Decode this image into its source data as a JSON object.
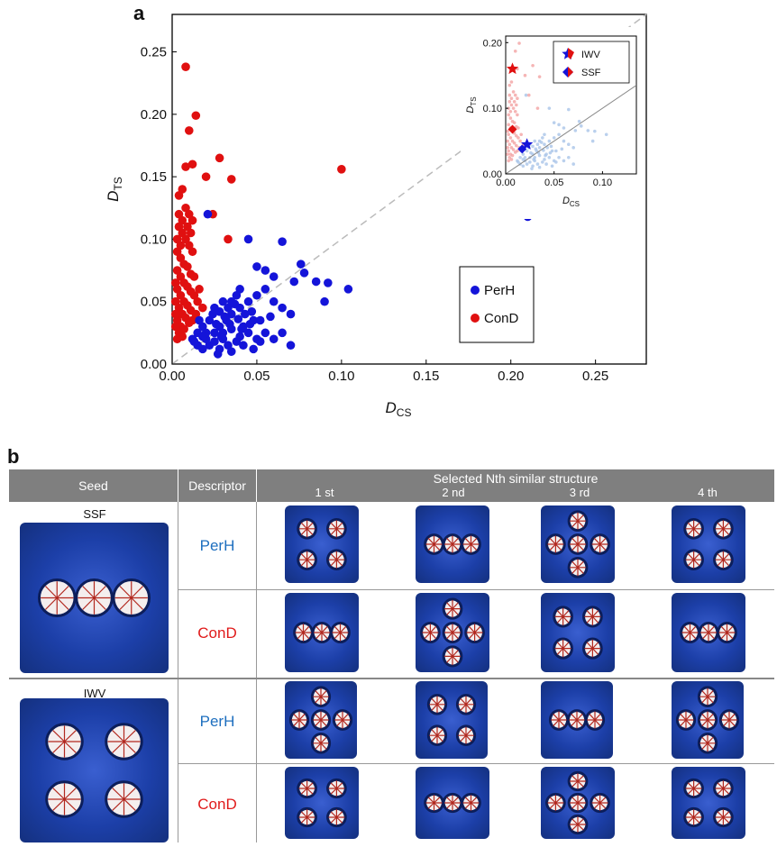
{
  "panel_a_letter": "a",
  "panel_b_letter": "b",
  "colors": {
    "perh": "#1414d9",
    "cond": "#e01010",
    "perh_label": "#1e6fbf",
    "cond_label": "#e01a1a",
    "header_bg": "#7f7f7f",
    "structure_blue": "#1c3fa8"
  },
  "chart_data": [
    {
      "type": "scatter",
      "xlabel_main": "D",
      "xlabel_sub": "CS",
      "ylabel_main": "D",
      "ylabel_sub": "TS",
      "xlim": [
        0,
        0.28
      ],
      "ylim": [
        0,
        0.28
      ],
      "xticks": [
        "0.00",
        "0.05",
        "0.10",
        "0.15",
        "0.20",
        "0.25"
      ],
      "yticks": [
        "0.00",
        "0.05",
        "0.10",
        "0.15",
        "0.20",
        "0.25"
      ],
      "diagonal": "dashed y = x",
      "legend_position": "lower-right",
      "series": [
        {
          "name": "PerH",
          "color": "#1414d9",
          "points": [
            [
              0.021,
              0.12
            ],
            [
              0.045,
              0.1
            ],
            [
              0.065,
              0.098
            ],
            [
              0.05,
              0.078
            ],
            [
              0.055,
              0.075
            ],
            [
              0.06,
              0.07
            ],
            [
              0.076,
              0.08
            ],
            [
              0.078,
              0.073
            ],
            [
              0.072,
              0.066
            ],
            [
              0.085,
              0.066
            ],
            [
              0.092,
              0.065
            ],
            [
              0.104,
              0.06
            ],
            [
              0.09,
              0.05
            ],
            [
              0.21,
              0.118
            ],
            [
              0.04,
              0.06
            ],
            [
              0.038,
              0.055
            ],
            [
              0.035,
              0.05
            ],
            [
              0.03,
              0.05
            ],
            [
              0.025,
              0.045
            ],
            [
              0.04,
              0.045
            ],
            [
              0.045,
              0.05
            ],
            [
              0.05,
              0.055
            ],
            [
              0.055,
              0.06
            ],
            [
              0.06,
              0.05
            ],
            [
              0.065,
              0.045
            ],
            [
              0.058,
              0.038
            ],
            [
              0.07,
              0.04
            ],
            [
              0.048,
              0.035
            ],
            [
              0.042,
              0.03
            ],
            [
              0.035,
              0.04
            ],
            [
              0.032,
              0.035
            ],
            [
              0.028,
              0.03
            ],
            [
              0.022,
              0.035
            ],
            [
              0.018,
              0.03
            ],
            [
              0.015,
              0.025
            ],
            [
              0.012,
              0.02
            ],
            [
              0.02,
              0.02
            ],
            [
              0.025,
              0.025
            ],
            [
              0.03,
              0.025
            ],
            [
              0.035,
              0.028
            ],
            [
              0.04,
              0.022
            ],
            [
              0.045,
              0.025
            ],
            [
              0.05,
              0.02
            ],
            [
              0.055,
              0.025
            ],
            [
              0.038,
              0.018
            ],
            [
              0.033,
              0.015
            ],
            [
              0.028,
              0.012
            ],
            [
              0.022,
              0.015
            ],
            [
              0.018,
              0.012
            ],
            [
              0.015,
              0.015
            ],
            [
              0.025,
              0.018
            ],
            [
              0.03,
              0.02
            ],
            [
              0.042,
              0.015
            ],
            [
              0.048,
              0.012
            ],
            [
              0.052,
              0.018
            ],
            [
              0.06,
              0.02
            ],
            [
              0.065,
              0.025
            ],
            [
              0.07,
              0.015
            ],
            [
              0.035,
              0.01
            ],
            [
              0.027,
              0.008
            ],
            [
              0.02,
              0.025
            ],
            [
              0.016,
              0.035
            ],
            [
              0.024,
              0.04
            ],
            [
              0.028,
              0.042
            ],
            [
              0.033,
              0.045
            ],
            [
              0.037,
              0.048
            ],
            [
              0.043,
              0.04
            ],
            [
              0.047,
              0.042
            ],
            [
              0.052,
              0.035
            ],
            [
              0.018,
              0.022
            ],
            [
              0.013,
              0.018
            ],
            [
              0.026,
              0.032
            ],
            [
              0.031,
              0.038
            ],
            [
              0.034,
              0.032
            ],
            [
              0.039,
              0.036
            ],
            [
              0.041,
              0.028
            ],
            [
              0.046,
              0.032
            ],
            [
              0.029,
              0.022
            ]
          ]
        },
        {
          "name": "ConD",
          "color": "#e01010",
          "points": [
            [
              0.008,
              0.238
            ],
            [
              0.014,
              0.199
            ],
            [
              0.01,
              0.187
            ],
            [
              0.012,
              0.16
            ],
            [
              0.008,
              0.158
            ],
            [
              0.028,
              0.165
            ],
            [
              0.02,
              0.15
            ],
            [
              0.035,
              0.148
            ],
            [
              0.1,
              0.156
            ],
            [
              0.024,
              0.12
            ],
            [
              0.033,
              0.1
            ],
            [
              0.004,
              0.135
            ],
            [
              0.006,
              0.14
            ],
            [
              0.008,
              0.125
            ],
            [
              0.01,
              0.12
            ],
            [
              0.012,
              0.115
            ],
            [
              0.004,
              0.11
            ],
            [
              0.006,
              0.105
            ],
            [
              0.008,
              0.1
            ],
            [
              0.01,
              0.095
            ],
            [
              0.012,
              0.09
            ],
            [
              0.003,
              0.09
            ],
            [
              0.005,
              0.085
            ],
            [
              0.007,
              0.08
            ],
            [
              0.009,
              0.078
            ],
            [
              0.011,
              0.072
            ],
            [
              0.013,
              0.07
            ],
            [
              0.003,
              0.075
            ],
            [
              0.005,
              0.07
            ],
            [
              0.007,
              0.065
            ],
            [
              0.009,
              0.062
            ],
            [
              0.011,
              0.058
            ],
            [
              0.013,
              0.055
            ],
            [
              0.015,
              0.05
            ],
            [
              0.003,
              0.06
            ],
            [
              0.005,
              0.055
            ],
            [
              0.007,
              0.05
            ],
            [
              0.009,
              0.047
            ],
            [
              0.011,
              0.043
            ],
            [
              0.004,
              0.045
            ],
            [
              0.006,
              0.04
            ],
            [
              0.008,
              0.037
            ],
            [
              0.01,
              0.033
            ],
            [
              0.012,
              0.035
            ],
            [
              0.003,
              0.035
            ],
            [
              0.005,
              0.03
            ],
            [
              0.007,
              0.028
            ],
            [
              0.004,
              0.025
            ],
            [
              0.006,
              0.022
            ],
            [
              0.003,
              0.02
            ],
            [
              0.018,
              0.045
            ],
            [
              0.016,
              0.06
            ],
            [
              0.014,
              0.04
            ],
            [
              0.002,
              0.05
            ],
            [
              0.002,
              0.04
            ],
            [
              0.002,
              0.03
            ],
            [
              0.002,
              0.065
            ],
            [
              0.003,
              0.1
            ],
            [
              0.005,
              0.095
            ],
            [
              0.009,
              0.11
            ],
            [
              0.011,
              0.105
            ],
            [
              0.006,
              0.115
            ],
            [
              0.004,
              0.12
            ]
          ]
        }
      ]
    },
    {
      "type": "scatter",
      "title": "inset",
      "xlabel_main": "D",
      "xlabel_sub": "CS",
      "ylabel_main": "D",
      "ylabel_sub": "TS",
      "xlim": [
        0,
        0.135
      ],
      "ylim": [
        0,
        0.21
      ],
      "xticks": [
        "0.00",
        "0.05",
        "0.10"
      ],
      "yticks": [
        "0.00",
        "0.10",
        "0.20"
      ],
      "legend_position": "top-right",
      "markers": [
        {
          "name": "IWV",
          "symbol": "star",
          "perh": [
            0.022,
            0.045
          ],
          "cond": [
            0.007,
            0.16
          ]
        },
        {
          "name": "SSF",
          "symbol": "diamond",
          "perh": [
            0.017,
            0.038
          ],
          "cond": [
            0.007,
            0.068
          ]
        }
      ]
    }
  ],
  "table": {
    "headers": {
      "seed": "Seed",
      "descriptor": "Descriptor",
      "selected": "Selected Nth similar structure"
    },
    "ranks": [
      "1 st",
      "2 nd",
      "3 rd",
      "4 th"
    ],
    "rows": [
      {
        "seed": "SSF",
        "descriptors": [
          "PerH",
          "ConD"
        ]
      },
      {
        "seed": "IWV",
        "descriptors": [
          "PerH",
          "ConD"
        ]
      }
    ]
  }
}
